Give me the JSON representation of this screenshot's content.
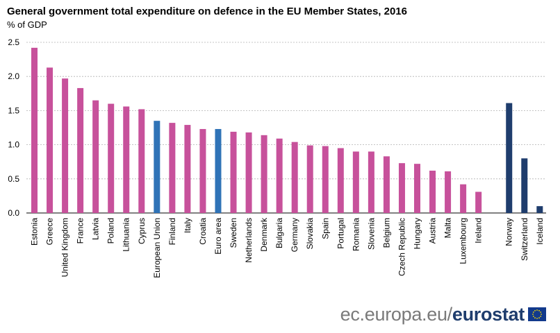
{
  "title": "General government total expenditure on defence in the EU Member States, 2016",
  "subtitle": "% of GDP",
  "footer": {
    "site": "ec.europa.eu/",
    "brand": "eurostat"
  },
  "colors": {
    "member_state": "#c7519b",
    "aggregate": "#2f73b7",
    "efta": "#1f3d6d",
    "grid": "#b0b0b0"
  },
  "chart_data": {
    "type": "bar",
    "title": "General government total expenditure on defence in the EU Member States, 2016",
    "ylabel": "% of GDP",
    "xlabel": "",
    "ylim": [
      0,
      2.5
    ],
    "yticks": [
      "0.0",
      "0.5",
      "1.0",
      "1.5",
      "2.0",
      "2.5"
    ],
    "grid": true,
    "categories": [
      "Estonia",
      "Greece",
      "United Kingdom",
      "France",
      "Latvia",
      "Poland",
      "Lithuania",
      "Cyprus",
      "European Union",
      "Finland",
      "Italy",
      "Croatia",
      "Euro area",
      "Sweden",
      "Netherlands",
      "Denmark",
      "Bulgaria",
      "Germany",
      "Slovakia",
      "Spain",
      "Portugal",
      "Romania",
      "Slovenia",
      "Belgium",
      "Czech Republic",
      "Hungary",
      "Austria",
      "Malta",
      "Luxembourg",
      "Ireland",
      "",
      "Norway",
      "Switzerland",
      "Iceland"
    ],
    "values": [
      2.42,
      2.13,
      1.97,
      1.83,
      1.65,
      1.6,
      1.56,
      1.52,
      1.35,
      1.32,
      1.29,
      1.23,
      1.23,
      1.19,
      1.18,
      1.14,
      1.09,
      1.04,
      0.99,
      0.98,
      0.95,
      0.9,
      0.9,
      0.83,
      0.73,
      0.72,
      0.62,
      0.61,
      0.42,
      0.31,
      null,
      1.61,
      0.8,
      0.1
    ],
    "groups": [
      "member",
      "member",
      "member",
      "member",
      "member",
      "member",
      "member",
      "member",
      "aggregate",
      "member",
      "member",
      "member",
      "aggregate",
      "member",
      "member",
      "member",
      "member",
      "member",
      "member",
      "member",
      "member",
      "member",
      "member",
      "member",
      "member",
      "member",
      "member",
      "member",
      "member",
      "member",
      "gap",
      "efta",
      "efta",
      "efta"
    ]
  }
}
